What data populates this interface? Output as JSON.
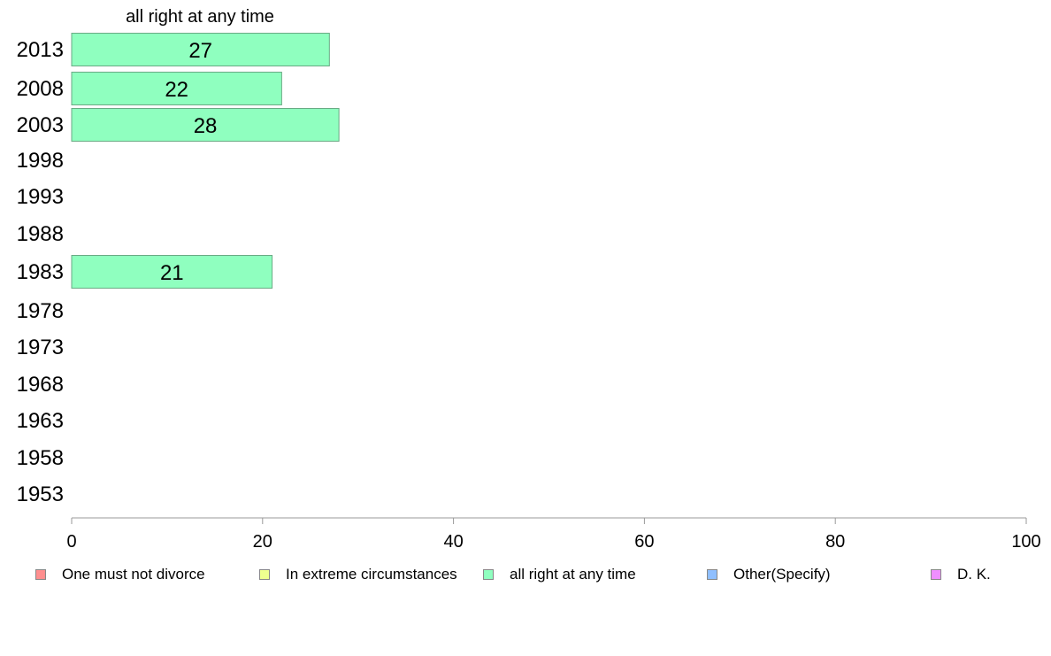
{
  "chart_data": {
    "type": "bar",
    "orientation": "horizontal",
    "panel_title": "all right at any time",
    "categories": [
      "2013",
      "2008",
      "2003",
      "1998",
      "1993",
      "1988",
      "1983",
      "1978",
      "1973",
      "1968",
      "1963",
      "1958",
      "1953"
    ],
    "series": [
      {
        "name": "all right at any time",
        "values": [
          27,
          22,
          28,
          null,
          null,
          null,
          21,
          null,
          null,
          null,
          null,
          null,
          null
        ]
      }
    ],
    "data_labels": [
      "27",
      "22",
      "28",
      "",
      "",
      "",
      "21",
      "",
      "",
      "",
      "",
      "",
      ""
    ],
    "xlim": [
      0,
      100
    ],
    "xticks": [
      0,
      20,
      40,
      60,
      80,
      100
    ],
    "xlabel": "",
    "ylabel": "",
    "grid": false,
    "legend_position": "bottom",
    "legend": [
      {
        "label": "One must not divorce",
        "color": "#ff8f8f"
      },
      {
        "label": "In extreme circumstances",
        "color": "#eeff8f"
      },
      {
        "label": "all right at any time",
        "color": "#8fffbf"
      },
      {
        "label": "Other(Specify)",
        "color": "#8fbfff"
      },
      {
        "label": "D. K.",
        "color": "#ef8fff"
      }
    ],
    "bar_color": "#8fffbf",
    "bar_edge_color": "#6aaa84",
    "axis_color": "#999999"
  }
}
